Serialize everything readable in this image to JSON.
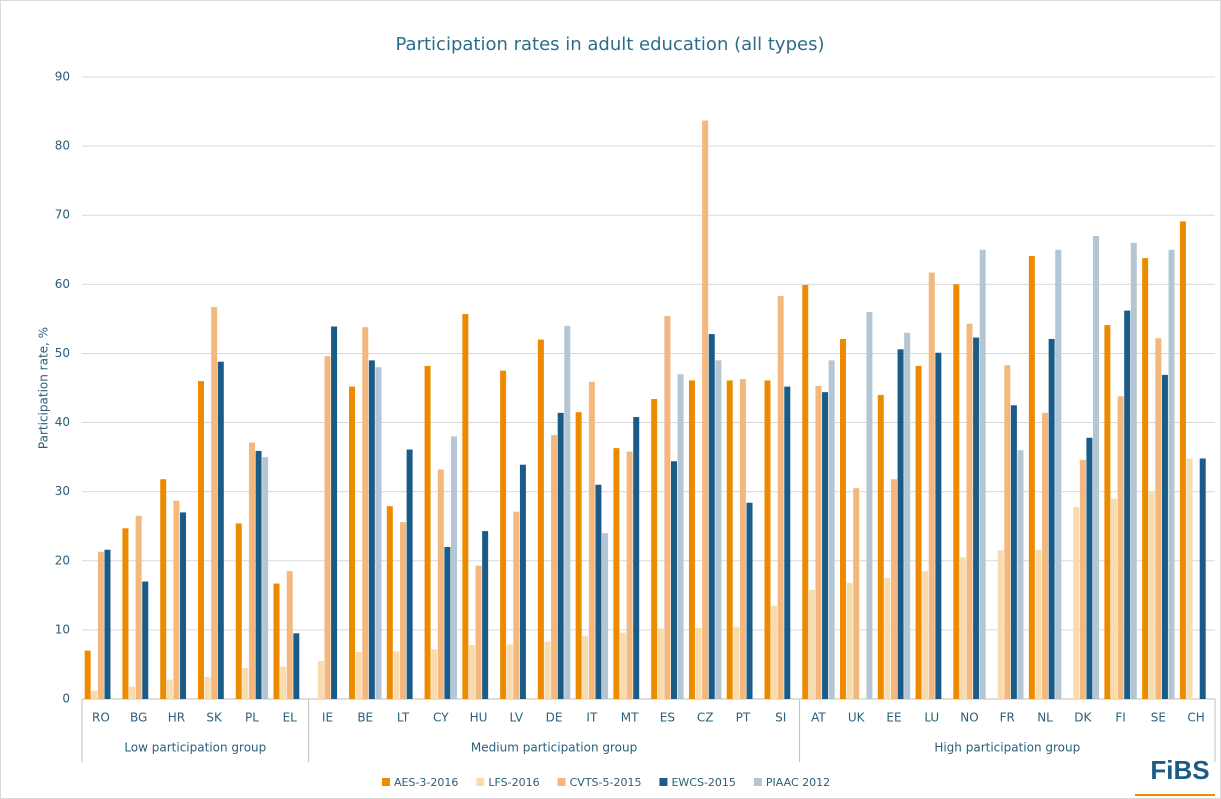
{
  "chart_data": {
    "type": "bar",
    "title": "Participation rates in adult education (all types)",
    "y_label": "Participation rate, %",
    "groups": [
      {
        "label": "Low participation group",
        "categories": [
          "RO",
          "BG",
          "HR",
          "SK",
          "PL",
          "EL"
        ]
      },
      {
        "label": "Medium participation group",
        "categories": [
          "IE",
          "BE",
          "LT",
          "CY",
          "HU",
          "LV",
          "DE",
          "IT",
          "MT",
          "ES",
          "CZ",
          "PT",
          "SI"
        ]
      },
      {
        "label": "High participation group",
        "categories": [
          "AT",
          "UK",
          "EE",
          "LU",
          "NO",
          "FR",
          "NL",
          "DK",
          "FI",
          "SE",
          "CH"
        ]
      }
    ],
    "series": [
      {
        "name": "AES-3-2016",
        "color": "#ed8b00",
        "values": [
          7,
          24.7,
          31.8,
          46,
          25.4,
          16.7,
          null,
          45.2,
          27.9,
          48.2,
          55.7,
          47.5,
          52,
          41.5,
          36.3,
          43.4,
          46.1,
          46.1,
          46.1,
          59.9,
          52.1,
          44,
          48.2,
          60,
          null,
          64.1,
          null,
          54.1,
          63.8,
          69.1
        ]
      },
      {
        "name": "LFS-2016",
        "color": "#f9dcae",
        "values": [
          1.2,
          1.8,
          2.8,
          3.2,
          4.5,
          4.7,
          5.5,
          6.8,
          6.9,
          7.2,
          7.8,
          7.9,
          8.3,
          9.1,
          9.6,
          10.2,
          10.3,
          10.4,
          13.5,
          15.8,
          16.8,
          17.5,
          18.5,
          20.5,
          21.5,
          21.6,
          27.8,
          29,
          29.9,
          34.8
        ]
      },
      {
        "name": "CVTS-5-2015",
        "color": "#f4b77e",
        "values": [
          21.3,
          26.5,
          28.7,
          56.7,
          37.1,
          18.5,
          49.6,
          53.8,
          25.6,
          33.2,
          19.3,
          27.1,
          38.2,
          45.9,
          35.8,
          55.4,
          83.7,
          46.3,
          58.3,
          45.3,
          30.5,
          31.8,
          61.7,
          54.3,
          48.3,
          41.4,
          34.6,
          43.8,
          52.2,
          null
        ]
      },
      {
        "name": "EWCS-2015",
        "color": "#1a5c87",
        "values": [
          21.6,
          17,
          27,
          48.8,
          35.9,
          9.5,
          53.9,
          49,
          36.1,
          22,
          24.3,
          33.9,
          41.4,
          31,
          40.8,
          34.4,
          52.8,
          28.4,
          45.2,
          44.4,
          null,
          50.6,
          50.1,
          52.3,
          42.5,
          52.1,
          37.8,
          56.2,
          46.9,
          34.8
        ]
      },
      {
        "name": "PIAAC 2012",
        "color": "#b4c6d4",
        "values": [
          null,
          null,
          null,
          null,
          35,
          null,
          null,
          48,
          null,
          38,
          null,
          null,
          54,
          24,
          null,
          47,
          49,
          null,
          null,
          49,
          56,
          53,
          null,
          65,
          36,
          65,
          67,
          66,
          65,
          null
        ]
      }
    ],
    "ylim": [
      0,
      90
    ],
    "yticks": [
      0,
      10,
      20,
      30,
      40,
      50,
      60,
      70,
      80,
      90
    ],
    "grid": true
  },
  "logo": "FiBS"
}
